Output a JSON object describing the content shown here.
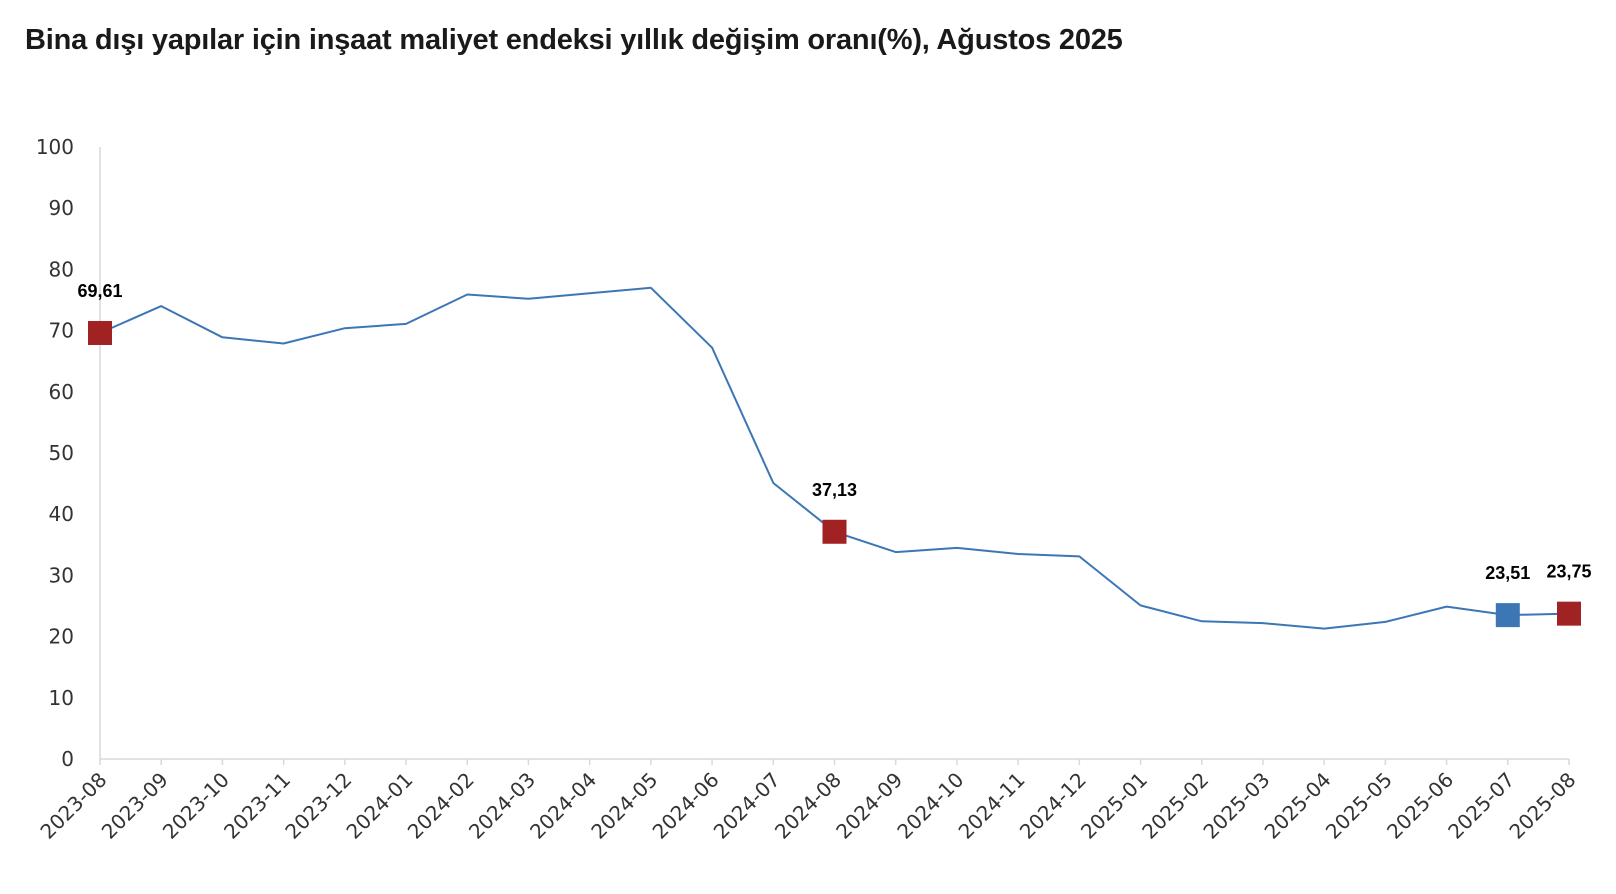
{
  "chart_data": {
    "type": "line",
    "title": "Bina dışı yapılar için inşaat maliyet endeksi yıllık değişim oranı(%), Ağustos 2025",
    "xlabel": "",
    "ylabel": "",
    "ylim": [
      0,
      100
    ],
    "yticks": [
      "0",
      "10",
      "20",
      "30",
      "40",
      "50",
      "60",
      "70",
      "80",
      "90",
      "100"
    ],
    "grid": false,
    "categories": [
      "2023-08",
      "2023-09",
      "2023-10",
      "2023-11",
      "2023-12",
      "2024-01",
      "2024-02",
      "2024-03",
      "2024-04",
      "2024-05",
      "2024-06",
      "2024-07",
      "2024-08",
      "2024-09",
      "2024-10",
      "2024-11",
      "2024-12",
      "2025-01",
      "2025-02",
      "2025-03",
      "2025-04",
      "2025-05",
      "2025-06",
      "2025-07",
      "2025-08"
    ],
    "series": [
      {
        "values": [
          69.61,
          74.0,
          68.9,
          67.9,
          70.4,
          71.1,
          75.9,
          75.2,
          76.1,
          77.0,
          67.2,
          45.1,
          37.13,
          33.8,
          34.5,
          33.5,
          33.1,
          25.1,
          22.5,
          22.2,
          21.3,
          22.4,
          24.9,
          23.51,
          23.75
        ],
        "color": "#3d76b5"
      }
    ],
    "highlights": [
      {
        "index": 0,
        "label": "69,61",
        "color": "#a02223"
      },
      {
        "index": 12,
        "label": "37,13",
        "color": "#a02223"
      },
      {
        "index": 23,
        "label": "23,51",
        "color": "#3d76b5"
      },
      {
        "index": 24,
        "label": "23,75",
        "color": "#a02223"
      }
    ]
  }
}
